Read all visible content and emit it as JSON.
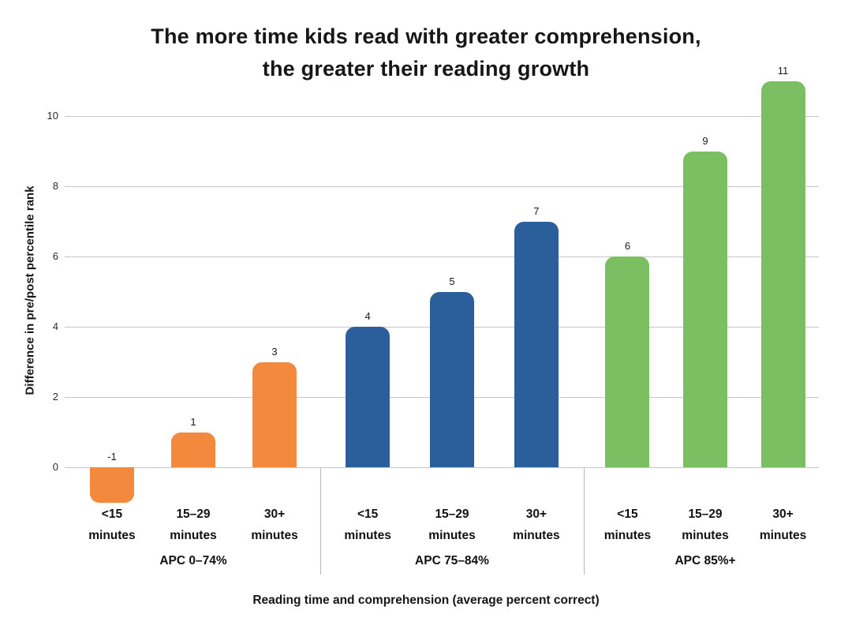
{
  "chart_data": {
    "type": "bar",
    "title": "The more time kids read with greater comprehension, the greater their reading growth",
    "ylabel": "Difference in pre/post percentile rank",
    "xlabel": "Reading time and comprehension (average percent correct)",
    "ylim": [
      -1.5,
      11.6
    ],
    "yticks": [
      0,
      2,
      4,
      6,
      8,
      10
    ],
    "grid": true,
    "legend_position": "none",
    "groups": [
      {
        "label": "APC 0–74%",
        "color": "#F2893C",
        "bars": [
          {
            "time": [
              "<15",
              "minutes"
            ],
            "value": -1
          },
          {
            "time": [
              "15–29",
              "minutes"
            ],
            "value": 1
          },
          {
            "time": [
              "30+",
              "minutes"
            ],
            "value": 3
          }
        ]
      },
      {
        "label": "APC 75–84%",
        "color": "#2B5F9C",
        "bars": [
          {
            "time": [
              "<15",
              "minutes"
            ],
            "value": 4
          },
          {
            "time": [
              "15–29",
              "minutes"
            ],
            "value": 5
          },
          {
            "time": [
              "30+",
              "minutes"
            ],
            "value": 7
          }
        ]
      },
      {
        "label": "APC 85%+",
        "color": "#7CBE62",
        "bars": [
          {
            "time": [
              "<15",
              "minutes"
            ],
            "value": 6
          },
          {
            "time": [
              "15–29",
              "minutes"
            ],
            "value": 9
          },
          {
            "time": [
              "30+",
              "minutes"
            ],
            "value": 11
          }
        ]
      }
    ]
  }
}
